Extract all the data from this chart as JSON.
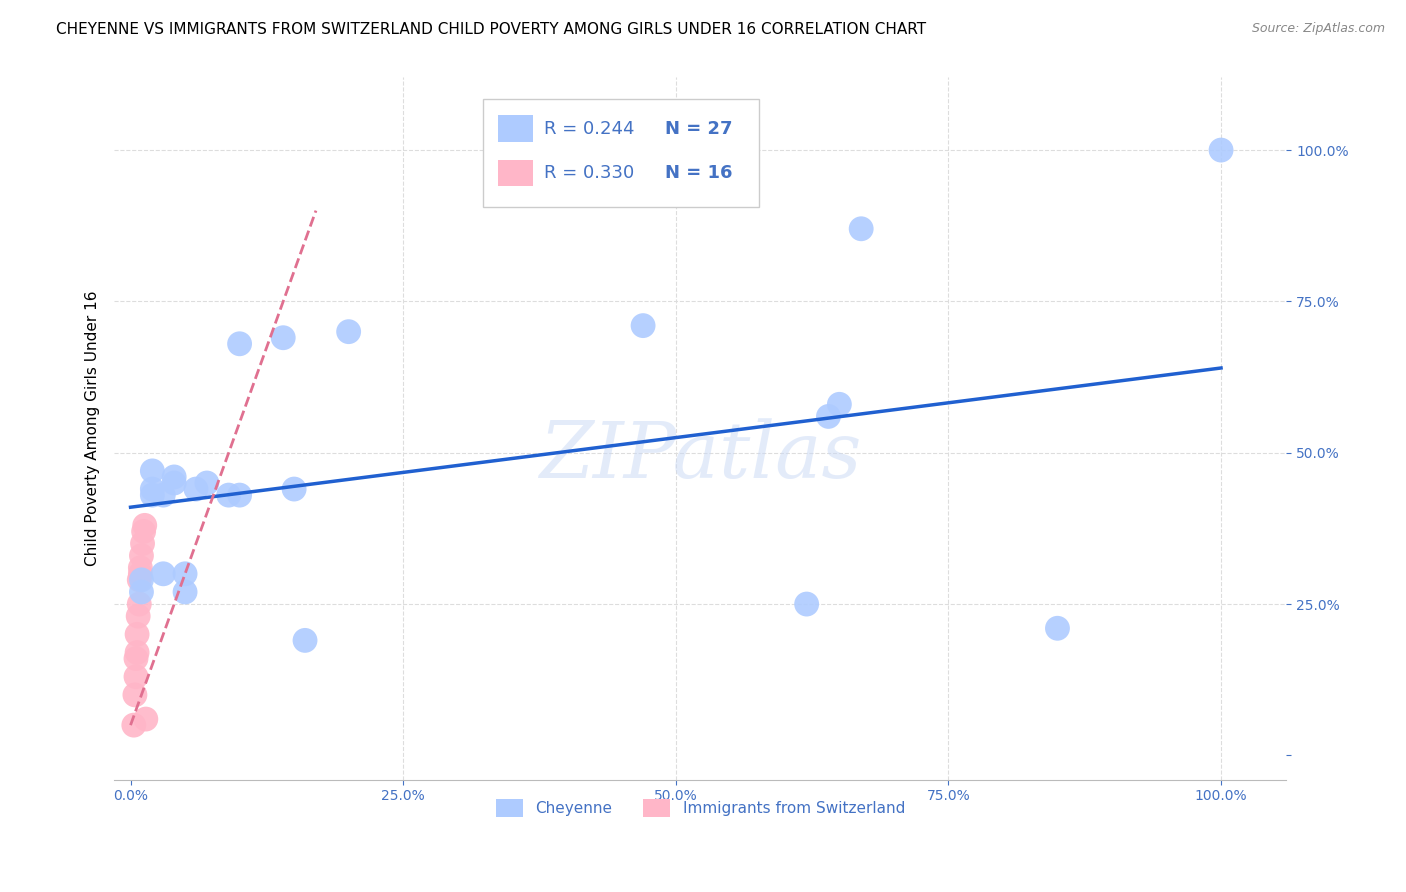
{
  "title": "CHEYENNE VS IMMIGRANTS FROM SWITZERLAND CHILD POVERTY AMONG GIRLS UNDER 16 CORRELATION CHART",
  "source": "Source: ZipAtlas.com",
  "tick_color": "#4472C4",
  "ylabel": "Child Poverty Among Girls Under 16",
  "x_ticklabels": [
    "0.0%",
    "25.0%",
    "50.0%",
    "75.0%",
    "100.0%"
  ],
  "y_ticklabels": [
    "",
    "25.0%",
    "50.0%",
    "75.0%",
    "100.0%"
  ],
  "x_ticks": [
    0,
    0.25,
    0.5,
    0.75,
    1.0
  ],
  "y_ticks": [
    0,
    0.25,
    0.5,
    0.75,
    1.0
  ],
  "legend_cheyenne_label": "Cheyenne",
  "legend_swiss_label": "Immigrants from Switzerland",
  "legend_r1": "R = 0.244",
  "legend_n1": "N = 27",
  "legend_r2": "R = 0.330",
  "legend_n2": "N = 16",
  "cheyenne_color": "#AECBFF",
  "swiss_color": "#FFB6C8",
  "cheyenne_line_color": "#2060D0",
  "swiss_line_color": "#E07090",
  "watermark": "ZIPatlas",
  "cheyenne_x": [
    0.01,
    0.01,
    0.02,
    0.02,
    0.02,
    0.03,
    0.03,
    0.04,
    0.04,
    0.05,
    0.05,
    0.06,
    0.07,
    0.09,
    0.1,
    0.1,
    0.14,
    0.15,
    0.16,
    0.2,
    0.47,
    0.62,
    0.64,
    0.65,
    0.67,
    0.85,
    1.0
  ],
  "cheyenne_y": [
    0.27,
    0.29,
    0.43,
    0.44,
    0.47,
    0.3,
    0.43,
    0.45,
    0.46,
    0.27,
    0.3,
    0.44,
    0.45,
    0.43,
    0.43,
    0.68,
    0.69,
    0.44,
    0.19,
    0.7,
    0.71,
    0.25,
    0.56,
    0.58,
    0.87,
    0.21,
    1.0
  ],
  "swiss_x": [
    0.003,
    0.004,
    0.005,
    0.005,
    0.006,
    0.006,
    0.007,
    0.008,
    0.008,
    0.009,
    0.009,
    0.01,
    0.011,
    0.012,
    0.013,
    0.014
  ],
  "swiss_y": [
    0.05,
    0.1,
    0.13,
    0.16,
    0.17,
    0.2,
    0.23,
    0.25,
    0.29,
    0.3,
    0.31,
    0.33,
    0.35,
    0.37,
    0.38,
    0.06
  ],
  "r_color": "#4472C4",
  "r2_color": "#E05070",
  "grid_color": "#DDDDDD",
  "background_color": "#FFFFFF",
  "title_fontsize": 11,
  "label_fontsize": 11,
  "tick_fontsize": 10,
  "legend_fontsize": 13
}
